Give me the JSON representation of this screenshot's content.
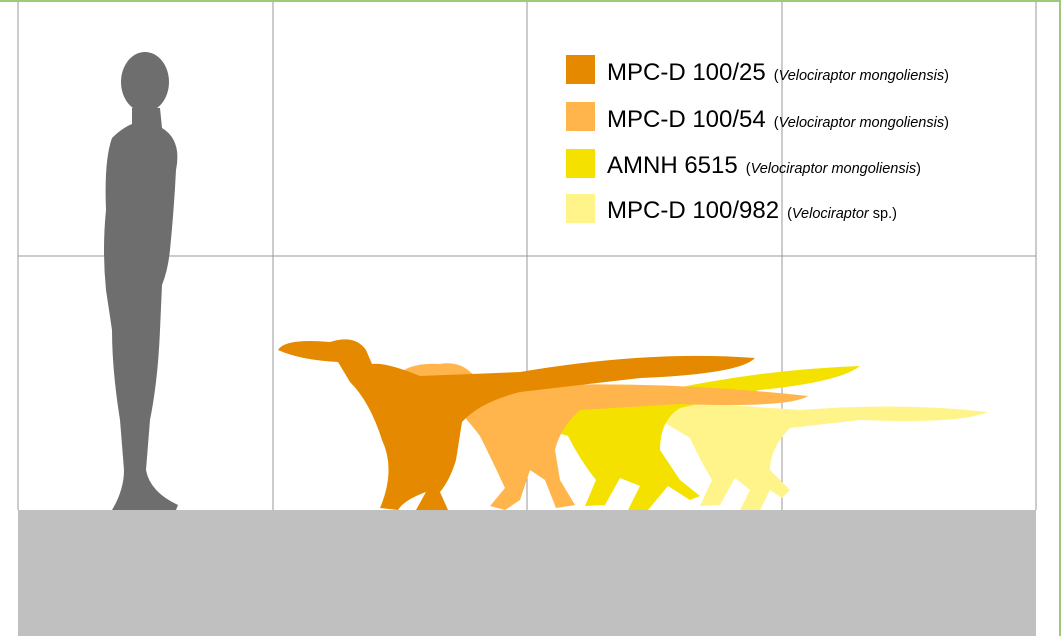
{
  "legend": {
    "items": [
      {
        "code": "MPC-D 100/25",
        "prefix": "(",
        "italic": "Velociraptor mongoliensis",
        "suffix": ")"
      },
      {
        "code": "MPC-D 100/54",
        "prefix": "(",
        "italic": "Velociraptor mongoliensis",
        "suffix": ")"
      },
      {
        "code": "AMNH 6515",
        "prefix": "(",
        "italic": "Velociraptor mongoliensis",
        "suffix": ")"
      },
      {
        "code": "MPC-D 100/982",
        "prefix": "(",
        "italic": "Velociraptor",
        "suffix": " sp.)"
      }
    ]
  }
}
